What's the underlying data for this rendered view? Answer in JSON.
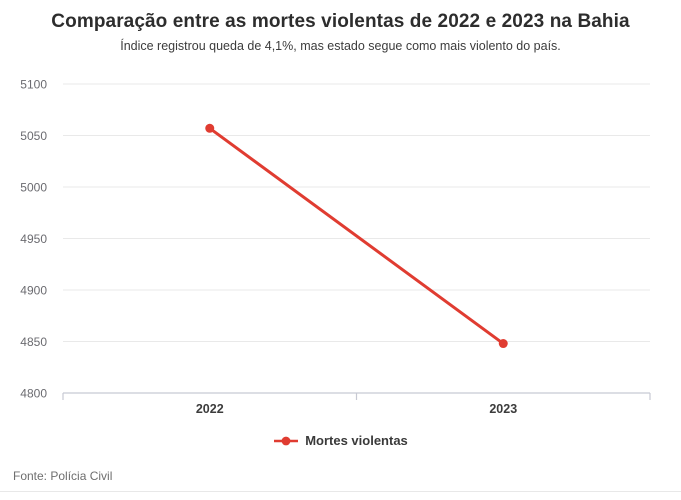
{
  "chart_data": {
    "type": "line",
    "title": "Comparação entre as mortes violentas de 2022 e 2023 na Bahia",
    "subtitle": "Índice registrou queda de 4,1%, mas estado segue como mais violento do país.",
    "categories": [
      "2022",
      "2023"
    ],
    "series": [
      {
        "name": "Mortes violentas",
        "values": [
          5057,
          4848
        ]
      }
    ],
    "xlabel": "",
    "ylabel": "",
    "ylim": [
      4800,
      5100
    ],
    "yticks": [
      4800,
      4850,
      4900,
      4950,
      5000,
      5050,
      5100
    ],
    "grid": true,
    "legend_position": "bottom"
  },
  "footer": {
    "source": "Fonte: Polícia Civil"
  },
  "colors": {
    "series": "#e03c31",
    "grid": "#e9e9e9",
    "axis": "#c7c9d3",
    "tick_label": "#6b6b70",
    "label": "#3c3c3c",
    "title": "#2d2d2d"
  }
}
